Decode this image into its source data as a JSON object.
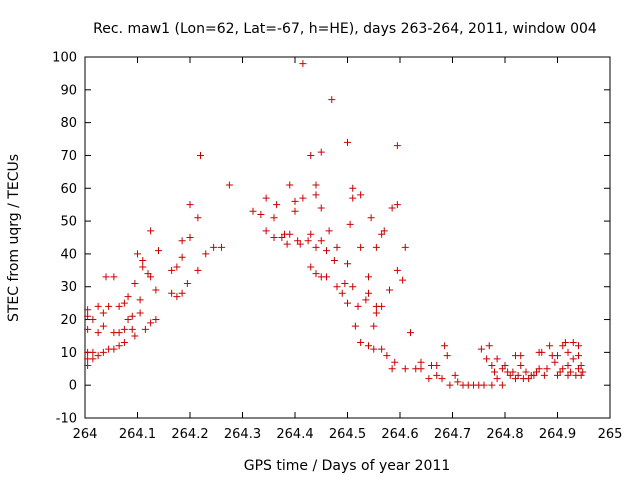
{
  "chart_data": {
    "type": "scatter",
    "title": "Rec. maw1 (Lon=62, Lat=-67, h=HE), days 263-264, 2011, window 004",
    "xlabel": "GPS time / Days of year 2011",
    "ylabel": "STEC from uqrg / TECUs",
    "xlim": [
      264,
      265
    ],
    "ylim": [
      -10,
      100
    ],
    "x_ticks": [
      "264",
      "264.1",
      "264.2",
      "264.3",
      "264.4",
      "264.5",
      "264.6",
      "264.7",
      "264.8",
      "264.9",
      "265"
    ],
    "y_ticks": [
      "-10",
      "0",
      "10",
      "20",
      "30",
      "40",
      "50",
      "60",
      "70",
      "80",
      "90",
      "100"
    ],
    "marker": "plus",
    "color": "#cc0000",
    "grid": false,
    "legend": "none",
    "points": [
      [
        264.005,
        6
      ],
      [
        264.005,
        8
      ],
      [
        264.005,
        10
      ],
      [
        264.005,
        17
      ],
      [
        264.005,
        21
      ],
      [
        264.005,
        23
      ],
      [
        264.015,
        8
      ],
      [
        264.015,
        10
      ],
      [
        264.015,
        20
      ],
      [
        264.025,
        9
      ],
      [
        264.025,
        16
      ],
      [
        264.025,
        24
      ],
      [
        264.035,
        10
      ],
      [
        264.035,
        18
      ],
      [
        264.035,
        22
      ],
      [
        264.04,
        33
      ],
      [
        264.045,
        11
      ],
      [
        264.045,
        24
      ],
      [
        264.055,
        11
      ],
      [
        264.055,
        16
      ],
      [
        264.055,
        33
      ],
      [
        264.065,
        12
      ],
      [
        264.065,
        16
      ],
      [
        264.065,
        24
      ],
      [
        264.075,
        13
      ],
      [
        264.075,
        17
      ],
      [
        264.075,
        25
      ],
      [
        264.082,
        20
      ],
      [
        264.082,
        27
      ],
      [
        264.09,
        17
      ],
      [
        264.09,
        21
      ],
      [
        264.095,
        15
      ],
      [
        264.095,
        31
      ],
      [
        264.1,
        40
      ],
      [
        264.105,
        22
      ],
      [
        264.105,
        26
      ],
      [
        264.11,
        36
      ],
      [
        264.11,
        38
      ],
      [
        264.115,
        17
      ],
      [
        264.12,
        34
      ],
      [
        264.125,
        19
      ],
      [
        264.125,
        33
      ],
      [
        264.125,
        47
      ],
      [
        264.135,
        20
      ],
      [
        264.135,
        29
      ],
      [
        264.14,
        41
      ],
      [
        264.165,
        28
      ],
      [
        264.165,
        35
      ],
      [
        264.175,
        27
      ],
      [
        264.175,
        36
      ],
      [
        264.185,
        28
      ],
      [
        264.185,
        39
      ],
      [
        264.185,
        44
      ],
      [
        264.195,
        31
      ],
      [
        264.2,
        45
      ],
      [
        264.2,
        55
      ],
      [
        264.215,
        35
      ],
      [
        264.215,
        51
      ],
      [
        264.22,
        70
      ],
      [
        264.23,
        40
      ],
      [
        264.245,
        42
      ],
      [
        264.26,
        42
      ],
      [
        264.275,
        61
      ],
      [
        264.32,
        53
      ],
      [
        264.335,
        52
      ],
      [
        264.345,
        47
      ],
      [
        264.345,
        57
      ],
      [
        264.36,
        45
      ],
      [
        264.36,
        51
      ],
      [
        264.365,
        55
      ],
      [
        264.375,
        45
      ],
      [
        264.38,
        46
      ],
      [
        264.385,
        43
      ],
      [
        264.39,
        61
      ],
      [
        264.39,
        46
      ],
      [
        264.4,
        53
      ],
      [
        264.4,
        56
      ],
      [
        264.405,
        44
      ],
      [
        264.41,
        43
      ],
      [
        264.415,
        98
      ],
      [
        264.415,
        57
      ],
      [
        264.425,
        44
      ],
      [
        264.43,
        36
      ],
      [
        264.43,
        46
      ],
      [
        264.43,
        70
      ],
      [
        264.44,
        34
      ],
      [
        264.44,
        42
      ],
      [
        264.44,
        58
      ],
      [
        264.44,
        61
      ],
      [
        264.45,
        33
      ],
      [
        264.45,
        44
      ],
      [
        264.45,
        54
      ],
      [
        264.45,
        71
      ],
      [
        264.46,
        33
      ],
      [
        264.46,
        41
      ],
      [
        264.465,
        47
      ],
      [
        264.47,
        87
      ],
      [
        264.475,
        38
      ],
      [
        264.48,
        30
      ],
      [
        264.48,
        42
      ],
      [
        264.49,
        28
      ],
      [
        264.495,
        31
      ],
      [
        264.5,
        25
      ],
      [
        264.5,
        37
      ],
      [
        264.5,
        74
      ],
      [
        264.505,
        49
      ],
      [
        264.51,
        30
      ],
      [
        264.51,
        57
      ],
      [
        264.51,
        60
      ],
      [
        264.515,
        18
      ],
      [
        264.52,
        24
      ],
      [
        264.525,
        13
      ],
      [
        264.525,
        42
      ],
      [
        264.525,
        58
      ],
      [
        264.535,
        26
      ],
      [
        264.54,
        12
      ],
      [
        264.54,
        28
      ],
      [
        264.54,
        33
      ],
      [
        264.545,
        51
      ],
      [
        264.55,
        11
      ],
      [
        264.55,
        18
      ],
      [
        264.555,
        22
      ],
      [
        264.555,
        24
      ],
      [
        264.555,
        42
      ],
      [
        264.565,
        11
      ],
      [
        264.565,
        24
      ],
      [
        264.565,
        46
      ],
      [
        264.57,
        47
      ],
      [
        264.575,
        9
      ],
      [
        264.58,
        29
      ],
      [
        264.585,
        5
      ],
      [
        264.585,
        54
      ],
      [
        264.59,
        7
      ],
      [
        264.595,
        35
      ],
      [
        264.595,
        55
      ],
      [
        264.595,
        73
      ],
      [
        264.605,
        32
      ],
      [
        264.61,
        42
      ],
      [
        264.61,
        5
      ],
      [
        264.62,
        16
      ],
      [
        264.63,
        5
      ],
      [
        264.64,
        5
      ],
      [
        264.64,
        7
      ],
      [
        264.655,
        2
      ],
      [
        264.66,
        6
      ],
      [
        264.67,
        6
      ],
      [
        264.67,
        3
      ],
      [
        264.68,
        2
      ],
      [
        264.685,
        12
      ],
      [
        264.69,
        9
      ],
      [
        264.695,
        0
      ],
      [
        264.705,
        3
      ],
      [
        264.71,
        1
      ],
      [
        264.72,
        0
      ],
      [
        264.73,
        0
      ],
      [
        264.74,
        0
      ],
      [
        264.75,
        0
      ],
      [
        264.755,
        11
      ],
      [
        264.76,
        0
      ],
      [
        264.765,
        8
      ],
      [
        264.77,
        12
      ],
      [
        264.775,
        0
      ],
      [
        264.775,
        6
      ],
      [
        264.78,
        4
      ],
      [
        264.785,
        2
      ],
      [
        264.785,
        8
      ],
      [
        264.795,
        0
      ],
      [
        264.795,
        5
      ],
      [
        264.8,
        6
      ],
      [
        264.805,
        4
      ],
      [
        264.81,
        3
      ],
      [
        264.815,
        4
      ],
      [
        264.82,
        2
      ],
      [
        264.82,
        9
      ],
      [
        264.825,
        3
      ],
      [
        264.83,
        6
      ],
      [
        264.83,
        9
      ],
      [
        264.835,
        2
      ],
      [
        264.84,
        4
      ],
      [
        264.845,
        2
      ],
      [
        264.85,
        3
      ],
      [
        264.855,
        3
      ],
      [
        264.86,
        4
      ],
      [
        264.865,
        5
      ],
      [
        264.865,
        10
      ],
      [
        264.87,
        10
      ],
      [
        264.875,
        3
      ],
      [
        264.88,
        5
      ],
      [
        264.885,
        12
      ],
      [
        264.89,
        9
      ],
      [
        264.895,
        7
      ],
      [
        264.9,
        3
      ],
      [
        264.9,
        9
      ],
      [
        264.905,
        4
      ],
      [
        264.91,
        5
      ],
      [
        264.91,
        12
      ],
      [
        264.915,
        13
      ],
      [
        264.92,
        3
      ],
      [
        264.92,
        6
      ],
      [
        264.92,
        10
      ],
      [
        264.925,
        4
      ],
      [
        264.93,
        8
      ],
      [
        264.93,
        13
      ],
      [
        264.935,
        3
      ],
      [
        264.94,
        5
      ],
      [
        264.94,
        9
      ],
      [
        264.94,
        12
      ],
      [
        264.945,
        3
      ],
      [
        264.945,
        6
      ],
      [
        264.948,
        4
      ]
    ]
  }
}
